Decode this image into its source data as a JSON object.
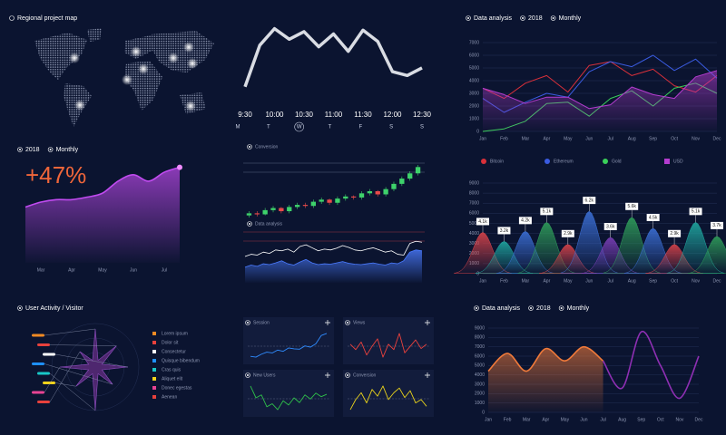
{
  "map": {
    "title": "Regional project map"
  },
  "chart_data": [
    {
      "type": "line",
      "x": [
        0,
        1,
        2,
        3,
        4,
        5,
        6,
        7,
        8,
        9,
        10,
        11,
        12
      ],
      "values": [
        15,
        70,
        92,
        78,
        88,
        68,
        85,
        62,
        90,
        75,
        35,
        30,
        40
      ],
      "xlim": [
        0,
        12
      ],
      "xticks": [
        {
          "value": 0,
          "label": "9:30"
        },
        {
          "value": 2,
          "label": "10:00"
        },
        {
          "value": 4,
          "label": "10:30"
        },
        {
          "value": 6,
          "label": "11:00"
        },
        {
          "value": 8,
          "label": "11:30"
        },
        {
          "value": 10,
          "label": "12:00"
        },
        {
          "value": 12,
          "label": "12:30"
        }
      ],
      "days": [
        "M",
        "T",
        "W",
        "T",
        "F",
        "S",
        "S"
      ],
      "selected_day": 2,
      "color": "#d9dce3"
    },
    {
      "type": "line",
      "title": "Data analysis",
      "year": "2018",
      "period": "Monthly",
      "categories": [
        "Jan",
        "Feb",
        "Mar",
        "Apr",
        "May",
        "Jun",
        "Jul",
        "Aug",
        "Sep",
        "Oct",
        "Nov",
        "Dec"
      ],
      "ylim": [
        0,
        7000
      ],
      "yticks": [
        0,
        1000,
        2000,
        3000,
        4000,
        5000,
        6000,
        7000
      ],
      "grid": true,
      "legend": "bottom",
      "series": [
        {
          "name": "Bitcoin",
          "color": "#d9303a",
          "values": [
            3400,
            2600,
            3800,
            4400,
            3100,
            5200,
            5500,
            4400,
            4900,
            3600,
            3100,
            4400
          ]
        },
        {
          "name": "Ethereum",
          "color": "#3a5be0",
          "values": [
            2600,
            1500,
            2300,
            3000,
            2700,
            4700,
            5500,
            5100,
            6000,
            4800,
            5700,
            4200
          ]
        },
        {
          "name": "Gold",
          "color": "#3ad15a",
          "values": [
            0,
            200,
            800,
            2200,
            2300,
            1200,
            2600,
            3200,
            2000,
            3400,
            3800,
            3000
          ]
        },
        {
          "name": "USD",
          "color": "#b43ccf",
          "area": true,
          "values": [
            3400,
            2900,
            2200,
            2700,
            2700,
            1800,
            2100,
            3500,
            2900,
            2600,
            4300,
            4800
          ]
        }
      ]
    },
    {
      "type": "area",
      "year": "2018",
      "period": "Monthly",
      "headline": "+47%",
      "area": true,
      "color": "#c14bf0",
      "categories": [
        null,
        "Mar",
        null,
        "Apr",
        null,
        "May",
        null,
        "Jun",
        null,
        "Jul",
        null
      ],
      "values": [
        30,
        40,
        45,
        45,
        50,
        58,
        82,
        95,
        82,
        100,
        110
      ]
    },
    {
      "type": "candlestick",
      "title": "Conversion",
      "open": [
        20,
        22,
        21,
        25,
        27,
        24,
        28,
        30,
        29,
        33,
        35,
        32,
        36,
        38,
        37,
        41,
        43,
        40,
        45,
        50,
        55,
        60
      ],
      "close": [
        22,
        21,
        25,
        27,
        24,
        28,
        30,
        29,
        33,
        35,
        32,
        36,
        38,
        37,
        41,
        43,
        40,
        45,
        50,
        55,
        60,
        66
      ],
      "high": [
        24,
        24,
        27,
        29,
        28,
        30,
        32,
        32,
        35,
        37,
        36,
        38,
        40,
        39,
        43,
        45,
        44,
        47,
        52,
        57,
        62,
        68
      ],
      "low": [
        18,
        19,
        20,
        23,
        22,
        22,
        26,
        27,
        27,
        31,
        30,
        30,
        34,
        35,
        35,
        39,
        38,
        38,
        43,
        48,
        53,
        58
      ]
    },
    {
      "type": "area",
      "title": "Data analysis",
      "series": [
        {
          "color": "#4a7bff",
          "area": true,
          "values": [
            20,
            25,
            22,
            28,
            26,
            30,
            35,
            28,
            25,
            32,
            38,
            30,
            26,
            28,
            27,
            30,
            33,
            29,
            27,
            26,
            28,
            30,
            27,
            25,
            30,
            28,
            35,
            55,
            60,
            58
          ]
        },
        {
          "color": "#ffffff",
          "values": [
            45,
            50,
            48,
            55,
            52,
            60,
            58,
            62,
            55,
            68,
            72,
            65,
            58,
            62,
            60,
            64,
            70,
            66,
            60,
            58,
            62,
            65,
            60,
            55,
            58,
            50,
            48,
            75,
            80,
            78
          ]
        }
      ]
    },
    {
      "type": "bell",
      "categories": [
        "Jan",
        "Feb",
        "Mar",
        "Apr",
        "May",
        "Jun",
        "Jul",
        "Aug",
        "Sep",
        "Oct",
        "Nov",
        "Dec"
      ],
      "ylim": [
        0,
        9000
      ],
      "yticks": [
        0,
        1000,
        2000,
        3000,
        4000,
        5000,
        6000,
        7000,
        8000,
        9000
      ],
      "grid": true,
      "values": [
        4100,
        3200,
        4200,
        5100,
        2900,
        6200,
        3600,
        5600,
        4500,
        2900,
        5100,
        3700
      ],
      "value_labels": [
        "4.1k",
        "3.2k",
        "4.2k",
        "5.1k",
        "2.9k",
        "6.2k",
        "3.6k",
        "5.6k",
        "4.5k",
        "2.9k",
        "5.1k",
        "3.7k"
      ],
      "colors": [
        "#d9434a",
        "#1fa7a0",
        "#3b6fd6",
        "#2f9e5a",
        "#d9434a",
        "#3b6fd6",
        "#7b3fb8",
        "#2f9e5a",
        "#3b6fd6",
        "#d9434a",
        "#1fa7a0",
        "#2f9e5a"
      ]
    },
    {
      "type": "radar",
      "title": "User Activity / Visitor",
      "categories": [
        "Lorem ipsum",
        "Dolor sit",
        "Consectetur",
        "Quisque bibendum",
        "Cras quis",
        "Aliquet elit",
        "Donec egestas",
        "Aenean"
      ],
      "values": [
        70,
        55,
        60,
        45,
        80,
        50,
        65,
        40
      ],
      "colors": [
        "#f08a24",
        "#e8413c",
        "#ffffff",
        "#1e90ff",
        "#18c8c8",
        "#f2d21b",
        "#e84393",
        "#e8413c"
      ]
    },
    {
      "type": "line",
      "title": "Session",
      "color": "#2f8cff",
      "values": [
        30,
        28,
        35,
        40,
        38,
        45,
        42,
        50,
        48,
        47,
        55,
        52,
        60,
        80,
        85
      ]
    },
    {
      "type": "line",
      "title": "Views",
      "color": "#e8413c",
      "values": [
        60,
        55,
        62,
        50,
        58,
        65,
        48,
        60,
        55,
        70,
        52,
        58,
        64,
        56,
        60
      ]
    },
    {
      "type": "line",
      "title": "New Users",
      "color": "#2fbf4a",
      "values": [
        70,
        50,
        55,
        35,
        40,
        30,
        45,
        38,
        50,
        42,
        55,
        48,
        58,
        52,
        56
      ]
    },
    {
      "type": "line",
      "title": "Conversion",
      "color": "#e8d21b",
      "values": [
        30,
        45,
        55,
        40,
        60,
        50,
        65,
        45,
        55,
        62,
        48,
        58,
        40,
        45,
        35
      ]
    },
    {
      "type": "area",
      "title": "Data analysis",
      "year": "2018",
      "period": "Monthly",
      "categories": [
        "Jan",
        "Feb",
        "Mar",
        "Apr",
        "May",
        "Jun",
        "Jul",
        "Aug",
        "Sep",
        "Oct",
        "Nov",
        "Dec"
      ],
      "ylim": [
        0,
        9000
      ],
      "yticks": [
        0,
        1000,
        2000,
        3000,
        4000,
        5000,
        6000,
        7000,
        8000,
        9000
      ],
      "grid": true,
      "series": [
        {
          "color": "#f07a3a",
          "area": true,
          "values": [
            4400,
            6300,
            4400,
            6800,
            5500,
            7000,
            5500,
            null,
            null,
            null,
            null,
            null
          ]
        },
        {
          "color": "#8e2fb3",
          "values": [
            null,
            null,
            null,
            null,
            null,
            null,
            5500,
            2600,
            8600,
            5000,
            1500,
            6000
          ]
        }
      ]
    }
  ]
}
